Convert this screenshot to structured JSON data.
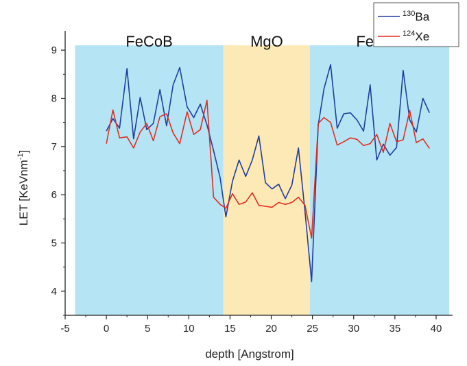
{
  "chart_data": {
    "type": "line",
    "xlabel": "depth [Angstrom]",
    "ylabel_main": "LET [KeVnm",
    "ylabel_sup": "-1",
    "ylabel_tail": "]",
    "xlim": [
      -5,
      42
    ],
    "ylim": [
      3.5,
      9.4
    ],
    "xticks": [
      -5,
      0,
      5,
      10,
      15,
      20,
      25,
      30,
      35,
      40
    ],
    "yticks": [
      4,
      5,
      6,
      7,
      8,
      9
    ],
    "regions": [
      {
        "label": "FeCoB",
        "x0": -3.8,
        "x1": 14.2,
        "color": "#b5e5f5"
      },
      {
        "label": "MgO",
        "x0": 14.2,
        "x1": 24.7,
        "color": "#fde9b6"
      },
      {
        "label": "FeCoB",
        "x0": 24.7,
        "x1": 41.6,
        "color": "#b5e5f5"
      }
    ],
    "legend": {
      "position": "top-right"
    },
    "series": [
      {
        "name_sup": "130",
        "name_main": "Ba",
        "color": "#1f3c9e",
        "x": [
          0,
          0.8,
          1.6,
          2.5,
          3.3,
          4.1,
          4.9,
          5.7,
          6.5,
          7.3,
          8.1,
          8.9,
          9.8,
          10.6,
          11.4,
          12.2,
          13.0,
          13.8,
          14.5,
          15.3,
          16.1,
          16.9,
          17.7,
          18.5,
          19.3,
          20.1,
          20.9,
          21.7,
          22.5,
          23.3,
          24.1,
          24.9,
          25.7,
          26.4,
          27.2,
          28.0,
          28.8,
          29.6,
          30.4,
          31.2,
          32.0,
          32.8,
          33.6,
          34.4,
          35.2,
          36.0,
          36.8,
          37.6,
          38.4,
          39.2
        ],
        "y": [
          7.32,
          7.58,
          7.38,
          8.62,
          7.16,
          8.02,
          7.35,
          7.48,
          8.18,
          7.43,
          8.28,
          8.64,
          7.82,
          7.6,
          7.88,
          7.45,
          6.92,
          6.35,
          5.54,
          6.28,
          6.72,
          6.38,
          6.72,
          7.22,
          6.25,
          6.12,
          6.22,
          5.92,
          6.2,
          6.97,
          5.65,
          4.2,
          7.45,
          8.2,
          8.7,
          7.38,
          7.68,
          7.7,
          7.55,
          7.32,
          8.28,
          6.72,
          7.05,
          6.82,
          6.98,
          8.58,
          7.55,
          7.3,
          8.0,
          7.7
        ]
      },
      {
        "name_sup": "124",
        "name_main": "Xe",
        "color": "#e32b20",
        "x": [
          0,
          0.8,
          1.6,
          2.5,
          3.3,
          4.1,
          4.9,
          5.7,
          6.5,
          7.3,
          8.1,
          8.9,
          9.8,
          10.6,
          11.4,
          12.2,
          13.0,
          13.8,
          14.5,
          15.3,
          16.1,
          16.9,
          17.7,
          18.5,
          19.3,
          20.1,
          20.9,
          21.7,
          22.5,
          23.3,
          24.1,
          24.9,
          25.7,
          26.4,
          27.2,
          28.0,
          28.8,
          29.6,
          30.4,
          31.2,
          32.0,
          32.8,
          33.6,
          34.4,
          35.2,
          36.0,
          36.8,
          37.6,
          38.4,
          39.2
        ],
        "y": [
          7.06,
          7.76,
          7.18,
          7.2,
          6.97,
          7.3,
          7.48,
          7.12,
          7.62,
          7.68,
          7.28,
          7.06,
          7.72,
          7.25,
          7.35,
          7.96,
          5.95,
          5.8,
          5.72,
          6.02,
          5.8,
          5.85,
          6.04,
          5.78,
          5.76,
          5.74,
          5.84,
          5.8,
          5.84,
          5.95,
          5.78,
          5.1,
          7.48,
          7.6,
          7.5,
          7.03,
          7.1,
          7.18,
          7.15,
          7.02,
          7.06,
          7.25,
          6.88,
          7.48,
          7.1,
          7.14,
          7.75,
          7.08,
          7.16,
          6.96
        ]
      }
    ]
  }
}
